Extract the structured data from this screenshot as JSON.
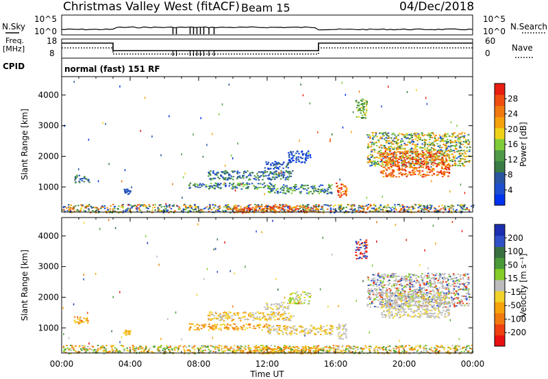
{
  "header": {
    "title": "Christmas Valley West (fitACF)",
    "beam": "Beam 15",
    "date": "04/Dec/2018"
  },
  "noise_panel": {
    "left_label": "N.Sky",
    "right_label": "N.Search",
    "ticks": [
      "10^5",
      "10^0"
    ]
  },
  "freq_panel": {
    "left_label_line1": "Freq.",
    "left_label_line2": "[MHz]",
    "left_ticks": [
      "18",
      "8"
    ],
    "right_label": "Nave",
    "right_ticks": [
      "60",
      "0"
    ],
    "steps": [
      {
        "start": "00:00",
        "end": "03:00",
        "level": "high"
      },
      {
        "start": "03:00",
        "end": "15:00",
        "level": "low"
      },
      {
        "start": "15:00",
        "end": "24:00",
        "level": "high"
      }
    ]
  },
  "cpid": {
    "label": "CPID",
    "value": "normal (fast) 151 RF"
  },
  "chart_data": [
    {
      "type": "heatmap",
      "name": "power",
      "xlabel": "Time UT",
      "ylabel": "Slant Range [km]",
      "x_ticks": [
        "00:00",
        "04:00",
        "08:00",
        "12:00",
        "16:00",
        "20:00",
        "00:00"
      ],
      "y_ticks": [
        "1000",
        "2000",
        "3000",
        "4000"
      ],
      "ylim": [
        180,
        4600
      ],
      "colorbar": {
        "label": "Power [dB]",
        "ticks": [
          "4",
          "8",
          "12",
          "16",
          "20",
          "24",
          "28"
        ],
        "colors": [
          "#0033ee",
          "#1e4fd0",
          "#2a55a0",
          "#3b7c46",
          "#4e9a48",
          "#7fcc3a",
          "#f0d21a",
          "#f5a10c",
          "#f07a10",
          "#ee4e10",
          "#e81e10"
        ]
      },
      "regions": [
        {
          "t0": 0.7,
          "t1": 1.6,
          "r0": 1150,
          "r1": 1400,
          "colors": [
            2,
            3,
            4,
            1
          ]
        },
        {
          "t0": 3.6,
          "t1": 4.0,
          "r0": 780,
          "r1": 950,
          "colors": [
            1,
            2
          ]
        },
        {
          "t0": 7.4,
          "t1": 12.2,
          "r0": 950,
          "r1": 1150,
          "colors": [
            1,
            3,
            4,
            5,
            2
          ]
        },
        {
          "t0": 8.5,
          "t1": 13.5,
          "r0": 1250,
          "r1": 1550,
          "colors": [
            1,
            2,
            3,
            4
          ]
        },
        {
          "t0": 11.8,
          "t1": 13.2,
          "r0": 1600,
          "r1": 1850,
          "colors": [
            0,
            1,
            2,
            3
          ]
        },
        {
          "t0": 13.2,
          "t1": 14.5,
          "r0": 1800,
          "r1": 2200,
          "colors": [
            0,
            1,
            2
          ]
        },
        {
          "t0": 12.0,
          "t1": 15.8,
          "r0": 800,
          "r1": 1100,
          "colors": [
            1,
            3,
            4,
            5
          ]
        },
        {
          "t0": 16.0,
          "t1": 16.6,
          "r0": 650,
          "r1": 1150,
          "colors": [
            8,
            9,
            10,
            7
          ]
        },
        {
          "t0": 17.1,
          "t1": 17.8,
          "r0": 3250,
          "r1": 3900,
          "colors": [
            4,
            5,
            6,
            3
          ]
        },
        {
          "t0": 17.8,
          "t1": 23.8,
          "r0": 1700,
          "r1": 2800,
          "colors": [
            5,
            6,
            7,
            8,
            3,
            4,
            1
          ]
        },
        {
          "t0": 18.6,
          "t1": 22.6,
          "r0": 1350,
          "r1": 2200,
          "colors": [
            8,
            9,
            10,
            7
          ]
        },
        {
          "t0": 0.0,
          "t1": 24.0,
          "r0": 180,
          "r1": 450,
          "colors": [
            0,
            1,
            2,
            3,
            4,
            5,
            6,
            7,
            8,
            9
          ]
        },
        {
          "t0": 10.0,
          "t1": 15.0,
          "r0": 180,
          "r1": 400,
          "colors": [
            7,
            8,
            9,
            10
          ]
        }
      ]
    },
    {
      "type": "heatmap",
      "name": "velocity",
      "xlabel": "Time UT",
      "ylabel": "Slant Range [km]",
      "x_ticks": [
        "00:00",
        "04:00",
        "08:00",
        "12:00",
        "16:00",
        "20:00",
        "00:00"
      ],
      "y_ticks": [
        "1000",
        "2000",
        "3000",
        "4000"
      ],
      "ylim": [
        180,
        4600
      ],
      "colorbar": {
        "label": "Velocity [m s⁻¹]",
        "ticks": [
          "200",
          "100",
          "50",
          "15",
          "-15",
          "-50",
          "-100",
          "-200"
        ],
        "colors": [
          "#1c2fb0",
          "#3050c8",
          "#3a7040",
          "#4a9a3a",
          "#84cc2a",
          "#bcbcbc",
          "#f0d22a",
          "#f5a20c",
          "#f07a10",
          "#ee4010",
          "#e81010"
        ]
      },
      "regions": [
        {
          "t0": 0.7,
          "t1": 1.6,
          "r0": 1150,
          "r1": 1400,
          "colors": [
            7,
            8,
            6
          ]
        },
        {
          "t0": 3.6,
          "t1": 4.0,
          "r0": 780,
          "r1": 950,
          "colors": [
            6,
            7
          ]
        },
        {
          "t0": 7.4,
          "t1": 12.2,
          "r0": 950,
          "r1": 1150,
          "colors": [
            6,
            7,
            8
          ]
        },
        {
          "t0": 8.5,
          "t1": 13.5,
          "r0": 1250,
          "r1": 1550,
          "colors": [
            6,
            7,
            5
          ]
        },
        {
          "t0": 11.8,
          "t1": 13.2,
          "r0": 1600,
          "r1": 1850,
          "colors": [
            5,
            6
          ]
        },
        {
          "t0": 13.2,
          "t1": 14.5,
          "r0": 1800,
          "r1": 2200,
          "colors": [
            5,
            6,
            4
          ]
        },
        {
          "t0": 12.0,
          "t1": 15.8,
          "r0": 800,
          "r1": 1100,
          "colors": [
            5,
            6,
            7
          ]
        },
        {
          "t0": 16.0,
          "t1": 16.6,
          "r0": 650,
          "r1": 1150,
          "colors": [
            5,
            5,
            6
          ]
        },
        {
          "t0": 17.1,
          "t1": 17.8,
          "r0": 3250,
          "r1": 3900,
          "colors": [
            10,
            9,
            0,
            1
          ]
        },
        {
          "t0": 17.8,
          "t1": 23.8,
          "r0": 1700,
          "r1": 2800,
          "colors": [
            5,
            5,
            5,
            4,
            1,
            9
          ]
        },
        {
          "t0": 18.6,
          "t1": 22.6,
          "r0": 1350,
          "r1": 2200,
          "colors": [
            5,
            5,
            5,
            6
          ]
        },
        {
          "t0": 0.0,
          "t1": 24.0,
          "r0": 180,
          "r1": 450,
          "colors": [
            5,
            6,
            7,
            8,
            4,
            3
          ]
        },
        {
          "t0": 10.0,
          "t1": 15.0,
          "r0": 180,
          "r1": 400,
          "colors": [
            6,
            7,
            8
          ]
        }
      ]
    }
  ]
}
